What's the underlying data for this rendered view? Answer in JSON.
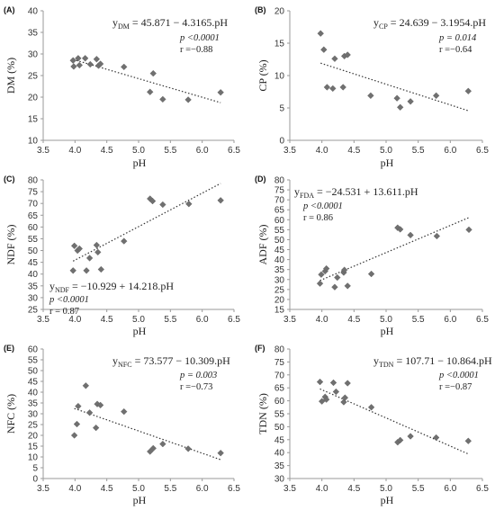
{
  "chart_data": [
    {
      "type": "scatter",
      "panel_label": "(A)",
      "ylabel": "DM (%)",
      "xlabel": "pH",
      "xlim": [
        3.5,
        6.5
      ],
      "ylim": [
        10,
        40
      ],
      "xticks": [
        "3.5",
        "4.0",
        "4.5",
        "5.0",
        "5.5",
        "6.0",
        "6.5"
      ],
      "yticks": [
        "10",
        "15",
        "20",
        "25",
        "30",
        "35",
        "40"
      ],
      "equation": {
        "lhs": "y",
        "sub": "DM",
        "rhs": " = 45.871 − 4.3165.pH"
      },
      "p_value": "p <0.0001",
      "r_value": "r =−0.88",
      "trendline": {
        "intercept": 45.871,
        "slope": -4.3165
      },
      "points": [
        {
          "x": 3.97,
          "y": 28.5
        },
        {
          "x": 3.98,
          "y": 27.1
        },
        {
          "x": 4.05,
          "y": 29.0
        },
        {
          "x": 4.07,
          "y": 27.4
        },
        {
          "x": 4.16,
          "y": 29.0
        },
        {
          "x": 4.24,
          "y": 27.6
        },
        {
          "x": 4.34,
          "y": 28.8
        },
        {
          "x": 4.37,
          "y": 27.3
        },
        {
          "x": 4.4,
          "y": 27.7
        },
        {
          "x": 4.77,
          "y": 27.0
        },
        {
          "x": 5.18,
          "y": 21.2
        },
        {
          "x": 5.23,
          "y": 25.5
        },
        {
          "x": 5.38,
          "y": 19.5
        },
        {
          "x": 5.78,
          "y": 19.4
        },
        {
          "x": 6.29,
          "y": 21.1
        }
      ]
    },
    {
      "type": "scatter",
      "panel_label": "(B)",
      "ylabel": "CP (%)",
      "xlabel": "pH",
      "xlim": [
        3.5,
        6.5
      ],
      "ylim": [
        0,
        20
      ],
      "xticks": [
        "3.5",
        "4.0",
        "4.5",
        "5.0",
        "5.5",
        "6.0",
        "6.5"
      ],
      "yticks": [
        "0",
        "5",
        "10",
        "15",
        "20"
      ],
      "equation": {
        "lhs": "y",
        "sub": "CP",
        "rhs": " = 24.639 − 3.1954.pH"
      },
      "p_value": "p = 0.014",
      "r_value": "r =−0.64",
      "trendline": {
        "intercept": 24.639,
        "slope": -3.1954
      },
      "points": [
        {
          "x": 3.98,
          "y": 16.5
        },
        {
          "x": 4.03,
          "y": 14.0
        },
        {
          "x": 4.08,
          "y": 8.2
        },
        {
          "x": 4.17,
          "y": 8.0
        },
        {
          "x": 4.2,
          "y": 12.6
        },
        {
          "x": 4.33,
          "y": 8.2
        },
        {
          "x": 4.35,
          "y": 13.0
        },
        {
          "x": 4.4,
          "y": 13.2
        },
        {
          "x": 4.76,
          "y": 6.9
        },
        {
          "x": 5.17,
          "y": 6.5
        },
        {
          "x": 5.22,
          "y": 5.1
        },
        {
          "x": 5.38,
          "y": 6.0
        },
        {
          "x": 5.78,
          "y": 6.9
        },
        {
          "x": 6.28,
          "y": 7.6
        }
      ]
    },
    {
      "type": "scatter",
      "panel_label": "(C)",
      "ylabel": "NDF (%)",
      "xlabel": "pH",
      "xlim": [
        3.5,
        6.5
      ],
      "ylim": [
        25,
        80
      ],
      "xticks": [
        "3.5",
        "4.0",
        "4.5",
        "5.0",
        "5.5",
        "6.0",
        "6.5"
      ],
      "yticks": [
        "25",
        "30",
        "35",
        "40",
        "45",
        "50",
        "55",
        "60",
        "65",
        "70",
        "75",
        "80"
      ],
      "equation": {
        "lhs": "y",
        "sub": "NDF",
        "rhs": " = −10.929 + 14.218.pH"
      },
      "p_value": "p <0.0001",
      "r_value": "r = 0.87",
      "trendline": {
        "intercept": -10.929,
        "slope": 14.218
      },
      "points": [
        {
          "x": 3.97,
          "y": 41.5
        },
        {
          "x": 3.99,
          "y": 52.0
        },
        {
          "x": 4.04,
          "y": 50.0
        },
        {
          "x": 4.07,
          "y": 50.8
        },
        {
          "x": 4.18,
          "y": 41.5
        },
        {
          "x": 4.23,
          "y": 46.8
        },
        {
          "x": 4.34,
          "y": 52.3
        },
        {
          "x": 4.36,
          "y": 49.3
        },
        {
          "x": 4.41,
          "y": 42.0
        },
        {
          "x": 4.77,
          "y": 54.0
        },
        {
          "x": 5.18,
          "y": 72.0
        },
        {
          "x": 5.22,
          "y": 71.0
        },
        {
          "x": 5.38,
          "y": 69.5
        },
        {
          "x": 5.79,
          "y": 69.8
        },
        {
          "x": 6.29,
          "y": 71.3
        }
      ]
    },
    {
      "type": "scatter",
      "panel_label": "(D)",
      "ylabel": "ADF (%)",
      "xlabel": "pH",
      "xlim": [
        3.5,
        6.5
      ],
      "ylim": [
        15,
        80
      ],
      "xticks": [
        "3.5",
        "4.0",
        "4.5",
        "5.0",
        "5.5",
        "6.0",
        "6.5"
      ],
      "yticks": [
        "15",
        "20",
        "25",
        "30",
        "35",
        "40",
        "45",
        "50",
        "55",
        "60",
        "65",
        "70",
        "75",
        "80"
      ],
      "equation": {
        "lhs": "y",
        "sub": "FDA",
        "rhs": " = −24.531 + 13.611.pH"
      },
      "p_value": "p <0.0001",
      "r_value": "r = 0.86",
      "trendline": {
        "intercept": -24.531,
        "slope": 13.611
      },
      "points": [
        {
          "x": 3.97,
          "y": 28.0
        },
        {
          "x": 3.99,
          "y": 32.5
        },
        {
          "x": 4.05,
          "y": 34.2
        },
        {
          "x": 4.07,
          "y": 35.5
        },
        {
          "x": 4.2,
          "y": 26.2
        },
        {
          "x": 4.24,
          "y": 31.0
        },
        {
          "x": 4.34,
          "y": 33.5
        },
        {
          "x": 4.35,
          "y": 34.8
        },
        {
          "x": 4.4,
          "y": 26.8
        },
        {
          "x": 4.77,
          "y": 32.8
        },
        {
          "x": 5.18,
          "y": 56.0
        },
        {
          "x": 5.22,
          "y": 55.2
        },
        {
          "x": 5.38,
          "y": 52.3
        },
        {
          "x": 5.79,
          "y": 51.8
        },
        {
          "x": 6.29,
          "y": 55.0
        }
      ]
    },
    {
      "type": "scatter",
      "panel_label": "(E)",
      "ylabel": "NFC (%)",
      "xlabel": "pH",
      "xlim": [
        3.5,
        6.5
      ],
      "ylim": [
        0,
        60
      ],
      "xticks": [
        "3.5",
        "4.0",
        "4.5",
        "5.0",
        "5.5",
        "6.0",
        "6.5"
      ],
      "yticks": [
        "0",
        "5",
        "10",
        "15",
        "20",
        "25",
        "30",
        "35",
        "40",
        "45",
        "50",
        "55",
        "60"
      ],
      "equation": {
        "lhs": "y",
        "sub": "NFC",
        "rhs": " = 73.577 − 10.309.pH"
      },
      "p_value": "p = 0.003",
      "r_value": "r =−0.73",
      "trendline": {
        "intercept": 73.577,
        "slope": -10.309
      },
      "points": [
        {
          "x": 3.99,
          "y": 20.0
        },
        {
          "x": 4.03,
          "y": 25.2
        },
        {
          "x": 4.05,
          "y": 33.5
        },
        {
          "x": 4.17,
          "y": 43.0
        },
        {
          "x": 4.23,
          "y": 30.5
        },
        {
          "x": 4.33,
          "y": 23.5
        },
        {
          "x": 4.35,
          "y": 34.5
        },
        {
          "x": 4.4,
          "y": 34.0
        },
        {
          "x": 4.77,
          "y": 31.0
        },
        {
          "x": 5.18,
          "y": 12.5
        },
        {
          "x": 5.23,
          "y": 14.0
        },
        {
          "x": 5.38,
          "y": 16.0
        },
        {
          "x": 5.78,
          "y": 13.8
        },
        {
          "x": 6.29,
          "y": 11.8
        }
      ]
    },
    {
      "type": "scatter",
      "panel_label": "(F)",
      "ylabel": "TDN (%)",
      "xlabel": "pH",
      "xlim": [
        3.5,
        6.5
      ],
      "ylim": [
        30,
        80
      ],
      "xticks": [
        "3.5",
        "4.0",
        "4.5",
        "5.0",
        "5.5",
        "6.0",
        "6.5"
      ],
      "yticks": [
        "30",
        "35",
        "40",
        "45",
        "50",
        "55",
        "60",
        "65",
        "70",
        "75",
        "80"
      ],
      "equation": {
        "lhs": "y",
        "sub": "TDN",
        "rhs": " = 107.71 − 10.864.pH"
      },
      "p_value": "p <0.0001",
      "r_value": "r =−0.87",
      "trendline": {
        "intercept": 107.71,
        "slope": -10.864
      },
      "points": [
        {
          "x": 3.97,
          "y": 67.3
        },
        {
          "x": 4.0,
          "y": 59.8
        },
        {
          "x": 4.05,
          "y": 61.5
        },
        {
          "x": 4.07,
          "y": 60.5
        },
        {
          "x": 4.18,
          "y": 67.0
        },
        {
          "x": 4.22,
          "y": 63.5
        },
        {
          "x": 4.34,
          "y": 59.5
        },
        {
          "x": 4.36,
          "y": 61.2
        },
        {
          "x": 4.4,
          "y": 66.8
        },
        {
          "x": 4.77,
          "y": 57.5
        },
        {
          "x": 5.18,
          "y": 44.0
        },
        {
          "x": 5.22,
          "y": 44.8
        },
        {
          "x": 5.38,
          "y": 46.3
        },
        {
          "x": 5.78,
          "y": 45.8
        },
        {
          "x": 6.28,
          "y": 44.5
        }
      ]
    }
  ]
}
